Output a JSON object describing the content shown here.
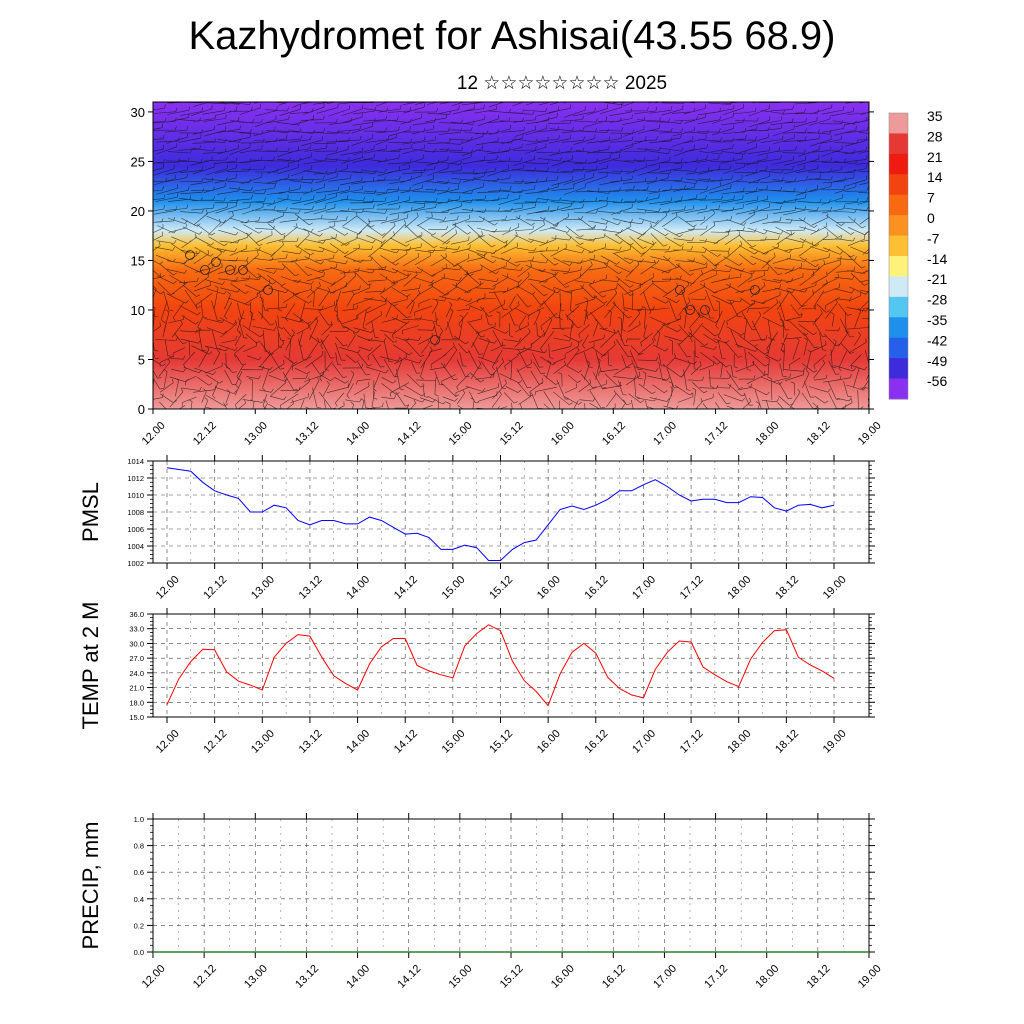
{
  "page": {
    "title": "Kazhydromet for Ashisai(43.55 68.9)",
    "subtitle": "12 ☆☆☆☆☆☆☆☆ 2025"
  },
  "chart_data": [
    {
      "type": "heatmap",
      "name": "vertical-cross-section",
      "x_ticks": [
        "12.00",
        "12.12",
        "13.00",
        "13.12",
        "14.00",
        "14.12",
        "15.00",
        "15.12",
        "16.00",
        "16.12",
        "17.00",
        "17.12",
        "18.00",
        "18.12",
        "19.00"
      ],
      "ylim": [
        0,
        31
      ],
      "y_ticks": [
        0,
        5,
        10,
        15,
        20,
        25,
        30
      ],
      "colorbar": {
        "labels": [
          "35",
          "28",
          "21",
          "14",
          "7",
          "0",
          "-7",
          "-14",
          "-21",
          "-28",
          "-35",
          "-42",
          "-49",
          "-56"
        ],
        "colors": [
          "#ef9a9a",
          "#e53935",
          "#ef1a10",
          "#f24410",
          "#f76a12",
          "#fb9120",
          "#fdbf33",
          "#fff27a",
          "#cfeaf5",
          "#54c6f2",
          "#1f8fec",
          "#2660e8",
          "#3d2bdc",
          "#8a30f0"
        ]
      },
      "temperature_profile": [
        {
          "h": 0,
          "t": 35
        },
        {
          "h": 5,
          "t": 25
        },
        {
          "h": 10,
          "t": 14
        },
        {
          "h": 14,
          "t": 4
        },
        {
          "h": 16.5,
          "t": -6
        },
        {
          "h": 18,
          "t": -20
        },
        {
          "h": 21,
          "t": -35
        },
        {
          "h": 24.5,
          "t": -52
        },
        {
          "h": 31,
          "t": -60
        }
      ],
      "grid": false
    },
    {
      "type": "line",
      "name": "pmsl",
      "ylabel": "PMSL",
      "ylim": [
        1002,
        1014
      ],
      "y_ticks": [
        "1002",
        "1004",
        "1006",
        "1008",
        "1010",
        "1012",
        "1014"
      ],
      "x_ticks": [
        "12.00",
        "12.12",
        "13.00",
        "13.12",
        "14.00",
        "14.12",
        "15.00",
        "15.12",
        "16.00",
        "16.12",
        "17.00",
        "17.12",
        "18.00",
        "18.12",
        "19.00"
      ],
      "color": "#0000ff",
      "series": [
        {
          "values": [
            1013.2,
            1013.0,
            1012.8,
            1011.5,
            1010.5,
            1010.0,
            1009.6,
            1008.0,
            1008.0,
            1008.8,
            1008.5,
            1007.0,
            1006.5,
            1007.0,
            1007.0,
            1006.6,
            1006.6,
            1007.4,
            1007.0,
            1006.2,
            1005.4,
            1005.5,
            1005.0,
            1003.6,
            1003.6,
            1004.1,
            1003.8,
            1002.3,
            1002.3,
            1003.6,
            1004.4,
            1004.7,
            1006.5,
            1008.3,
            1008.7,
            1008.3,
            1008.8,
            1009.5,
            1010.5,
            1010.5,
            1011.2,
            1011.8,
            1011.0,
            1010.0,
            1009.3,
            1009.5,
            1009.5,
            1009.1,
            1009.1,
            1009.8,
            1009.7,
            1008.5,
            1008.1,
            1008.8,
            1008.9,
            1008.5,
            1008.8
          ]
        }
      ],
      "grid": true
    },
    {
      "type": "line",
      "name": "temp-2m",
      "ylabel": "TEMP at 2 M",
      "ylim": [
        15,
        36
      ],
      "y_ticks": [
        "15.0",
        "18.0",
        "21.0",
        "24.0",
        "27.0",
        "30.0",
        "33.0",
        "36.0"
      ],
      "x_ticks": [
        "12.00",
        "12.12",
        "13.00",
        "13.12",
        "14.00",
        "14.12",
        "15.00",
        "15.12",
        "16.00",
        "16.12",
        "17.00",
        "17.12",
        "18.00",
        "18.12",
        "19.00"
      ],
      "color": "#ff0000",
      "series": [
        {
          "values": [
            17.5,
            22.8,
            26.3,
            28.8,
            28.7,
            24.2,
            22.3,
            21.5,
            20.5,
            27.2,
            30.0,
            31.8,
            31.5,
            27.2,
            23.4,
            21.8,
            20.5,
            25.8,
            29.3,
            31.0,
            31.0,
            25.5,
            24.4,
            23.6,
            23.0,
            29.5,
            32.0,
            33.8,
            32.6,
            26.4,
            22.4,
            20.2,
            17.3,
            23.8,
            28.2,
            30.0,
            28.0,
            23.1,
            20.8,
            19.5,
            18.9,
            24.7,
            28.2,
            30.5,
            30.3,
            25.2,
            23.6,
            22.2,
            21.2,
            26.8,
            30.2,
            32.6,
            32.8,
            27.2,
            25.6,
            24.4,
            22.9
          ]
        }
      ],
      "grid": true
    },
    {
      "type": "line",
      "name": "precip",
      "ylabel": "PRECIP, mm",
      "ylim": [
        0,
        1
      ],
      "y_ticks": [
        "0.0",
        "0.2",
        "0.4",
        "0.6",
        "0.8",
        "1.0"
      ],
      "x_ticks": [
        "12.00",
        "12.12",
        "13.00",
        "13.12",
        "14.00",
        "14.12",
        "15.00",
        "15.12",
        "16.00",
        "16.12",
        "17.00",
        "17.12",
        "18.00",
        "18.12",
        "19.00"
      ],
      "color": "#2e7d32",
      "series": [
        {
          "values": [
            0,
            0,
            0,
            0,
            0,
            0,
            0,
            0,
            0,
            0,
            0,
            0,
            0,
            0,
            0,
            0,
            0,
            0,
            0,
            0,
            0,
            0,
            0,
            0,
            0,
            0,
            0,
            0,
            0,
            0,
            0,
            0,
            0,
            0,
            0,
            0,
            0,
            0,
            0,
            0,
            0,
            0,
            0,
            0,
            0,
            0,
            0,
            0,
            0,
            0,
            0,
            0,
            0,
            0,
            0,
            0,
            0
          ]
        }
      ],
      "grid": true
    }
  ]
}
